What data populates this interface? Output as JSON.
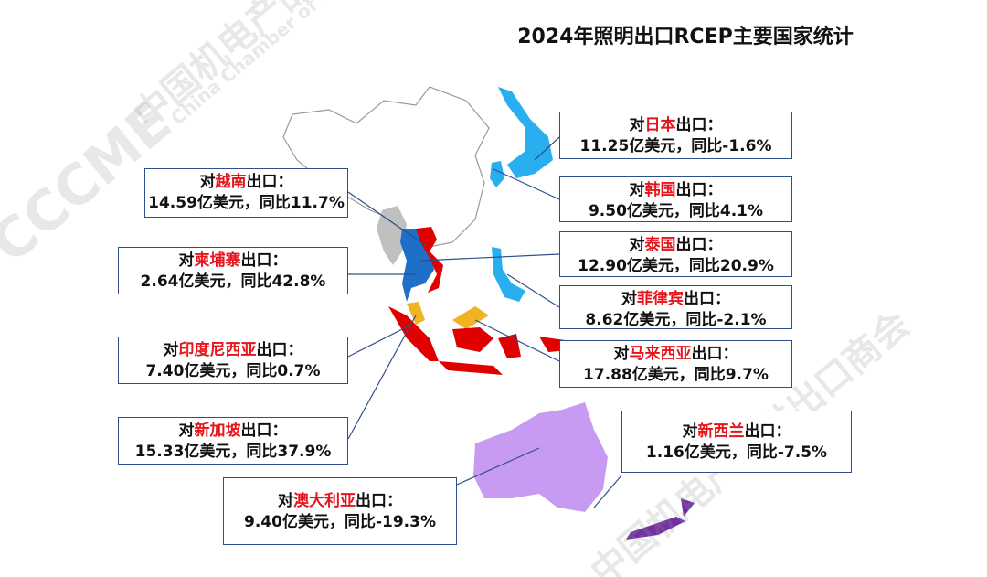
{
  "title": "2024年照明出口RCEP主要国家统计",
  "watermark": {
    "cn": "中国机电产品进出口商会",
    "en": "China Chamber of Commerce for Import and Export of Machinery and Electronic Products",
    "logo": "CCCME"
  },
  "callouts": [
    {
      "prefix": "对",
      "country": "日本",
      "suffix": "出口：",
      "detail": "11.25亿美元，同比-1.6%"
    },
    {
      "prefix": "对",
      "country": "韩国",
      "suffix": "出口：",
      "detail": "9.50亿美元，同比4.1%"
    },
    {
      "prefix": "对",
      "country": "泰国",
      "suffix": "出口：",
      "detail": "12.90亿美元，同比20.9%"
    },
    {
      "prefix": "对",
      "country": "菲律宾",
      "suffix": "出口：",
      "detail": "8.62亿美元，同比-2.1%"
    },
    {
      "prefix": "对",
      "country": "马来西亚",
      "suffix": "出口：",
      "detail": "17.88亿美元，同比9.7%"
    },
    {
      "prefix": "对",
      "country": "越南",
      "suffix": "出口：",
      "detail": "14.59亿美元，同比11.7%"
    },
    {
      "prefix": "对",
      "country": "柬埔寨",
      "suffix": "出口：",
      "detail": "2.64亿美元，同比42.8%"
    },
    {
      "prefix": "对",
      "country": "印度尼西亚",
      "suffix": "出口：",
      "detail": "7.40亿美元，同比0.7%"
    },
    {
      "prefix": "对",
      "country": "新加坡",
      "suffix": "出口：",
      "detail": "15.33亿美元，同比37.9%"
    },
    {
      "prefix": "对",
      "country": "澳大利亚",
      "suffix": "出口：",
      "detail": "9.40亿美元，同比-19.3%"
    },
    {
      "prefix": "对",
      "country": "新西兰",
      "suffix": "出口：",
      "detail": "1.16亿美元，同比-7.5%"
    }
  ]
}
